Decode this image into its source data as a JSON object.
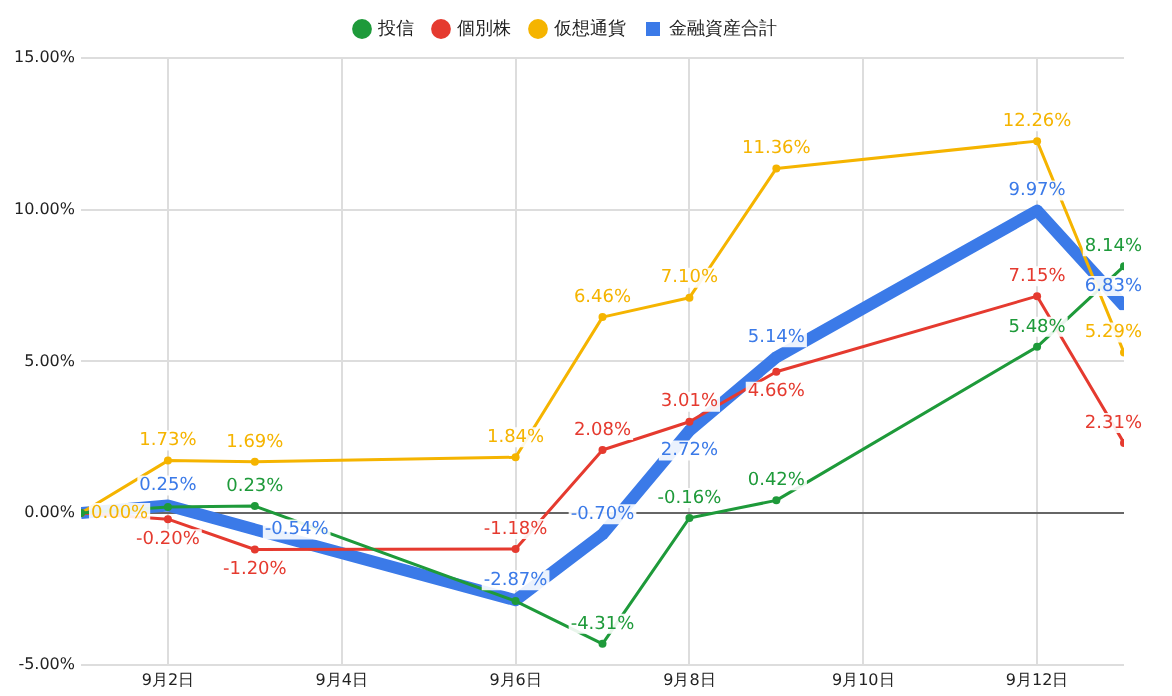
{
  "chart_data": {
    "type": "line",
    "x": [
      "--09-01",
      "--09-02",
      "--09-03",
      "--09-06",
      "--09-07",
      "--09-08",
      "--09-09",
      "--09-12",
      "--09-13"
    ],
    "xlim": [
      "--09-01",
      "--09-13"
    ],
    "xticks": [
      {
        "value": "--09-02",
        "label": "9月2日"
      },
      {
        "value": "--09-04",
        "label": "9月4日"
      },
      {
        "value": "--09-06",
        "label": "9月6日"
      },
      {
        "value": "--09-08",
        "label": "9月8日"
      },
      {
        "value": "--09-10",
        "label": "9月10日"
      },
      {
        "value": "--09-12",
        "label": "9月12日"
      }
    ],
    "ylim": [
      -5,
      15
    ],
    "yticks": [
      {
        "value": -5,
        "label": "-5.00%"
      },
      {
        "value": 0,
        "label": "0.00%"
      },
      {
        "value": 5,
        "label": "5.00%"
      },
      {
        "value": 10,
        "label": "10.00%"
      },
      {
        "value": 15,
        "label": "15.00%"
      }
    ],
    "grid": true,
    "legend": "top",
    "marker": "circle",
    "series": [
      {
        "name": "投信",
        "color": "#1e9a3a",
        "values": [
          0,
          0.2,
          0.23,
          -2.9,
          -4.31,
          -0.16,
          0.42,
          5.48,
          8.14
        ],
        "value_labels": [
          null,
          null,
          "0.23%",
          null,
          "-4.31%",
          "-0.16%",
          "0.42%",
          "5.48%",
          "8.14%"
        ]
      },
      {
        "name": "個別株",
        "color": "#e53a2f",
        "values": [
          0,
          -0.2,
          -1.2,
          -1.18,
          2.08,
          3.01,
          4.66,
          7.15,
          2.31
        ],
        "value_labels": [
          null,
          "-0.20%",
          "-1.20%",
          "-1.18%",
          "2.08%",
          "3.01%",
          "4.66%",
          "7.15%",
          "2.31%"
        ]
      },
      {
        "name": "金融資産合計",
        "color": "#3b7ae8",
        "marker": "square",
        "values": [
          0,
          0.25,
          -0.54,
          -2.87,
          -0.7,
          2.72,
          5.14,
          9.97,
          6.83
        ],
        "value_labels": [
          null,
          "0.25%",
          "-0.54%",
          "-2.87%",
          "-0.70%",
          "2.72%",
          "5.14%",
          "9.97%",
          "6.83%"
        ]
      },
      {
        "name": "仮想通貨",
        "color": "#f5b400",
        "values": [
          0,
          1.73,
          1.69,
          1.84,
          6.46,
          7.1,
          11.36,
          12.26,
          5.29
        ],
        "value_labels": [
          "0.00%",
          "1.73%",
          "1.69%",
          "1.84%",
          "6.46%",
          "7.10%",
          "11.36%",
          "12.26%",
          "5.29%"
        ]
      }
    ]
  }
}
